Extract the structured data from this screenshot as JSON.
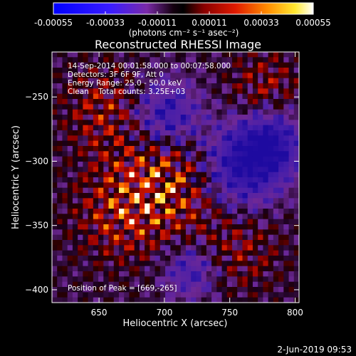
{
  "chart_data": {
    "type": "heatmap",
    "title": "Reconstructed RHESSI Image",
    "xlabel": "Heliocentric X (arcsec)",
    "ylabel": "Heliocentric Y (arcsec)",
    "xlim": [
      614,
      803
    ],
    "ylim": [
      -410,
      -215
    ],
    "x_ticks": [
      650,
      700,
      750,
      800
    ],
    "y_ticks": [
      -250,
      -300,
      -350,
      -400
    ],
    "colorbar": {
      "colormap": "blue-white-red-yellow-white",
      "vmin": -0.00055,
      "vmax": 0.00055,
      "tick_values": [
        -0.00055,
        -0.00033,
        -0.00011,
        0.00011,
        0.00033,
        0.00055
      ],
      "tick_labels": [
        "-0.00055",
        "-0.00033",
        "-0.00011",
        "0.00011",
        "0.00033",
        "0.00055"
      ],
      "unit_label": "(photons cm⁻² s⁻¹ asec⁻²)"
    },
    "annotations": {
      "time_range": "14-Sep-2014 00:01:58.000 to 00:07:58.000",
      "detectors": "Detectors: 3F 6F 9F, Att 0",
      "energy_range": "Energy Range: 25.0 - 50.0 keV",
      "method": "Clean    Total counts: 3.25E+03",
      "peak": "Position of Peak = [669,-265]"
    },
    "grid": false
  },
  "timestamp": "2-Jun-2019 09:53",
  "colors": {
    "background": "#000000",
    "foreground": "#ffffff"
  }
}
